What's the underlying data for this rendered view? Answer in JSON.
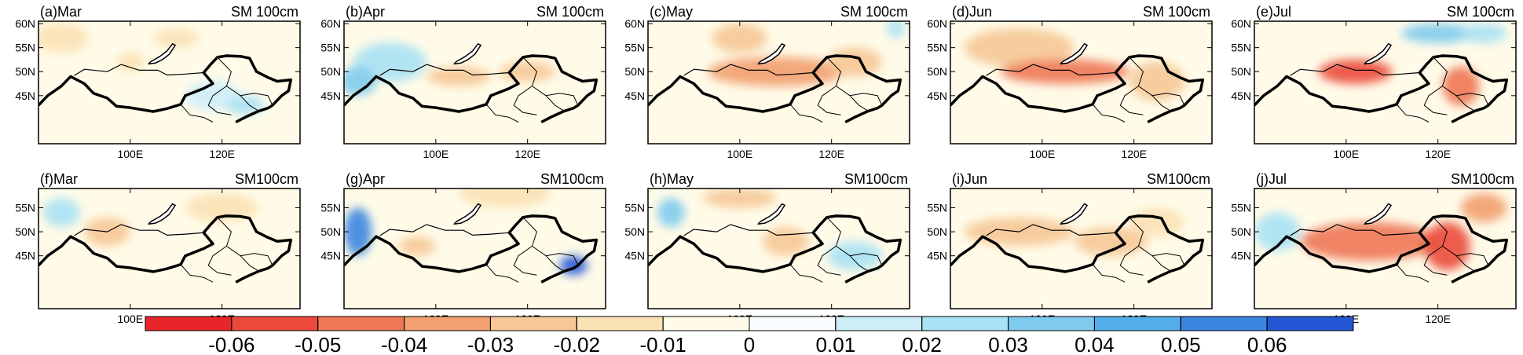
{
  "panels": [
    {
      "label": "(a)Mar",
      "variable": "SM 100cm",
      "xlim": [
        80,
        137
      ],
      "ylim": [
        35,
        60.5
      ],
      "yticks": [
        {
          "value": 60,
          "label": "60N"
        },
        {
          "value": 55,
          "label": "55N"
        },
        {
          "value": 50,
          "label": "50N"
        },
        {
          "value": 45,
          "label": "45N"
        }
      ],
      "xticks": [
        {
          "value": 100,
          "label": "100E"
        },
        {
          "value": 120,
          "label": "120E"
        }
      ]
    },
    {
      "label": "(b)Apr",
      "variable": "SM 100cm",
      "xlim": [
        80,
        137
      ],
      "ylim": [
        35,
        60.5
      ],
      "yticks": [
        {
          "value": 60,
          "label": "60N"
        },
        {
          "value": 55,
          "label": "55N"
        },
        {
          "value": 50,
          "label": "50N"
        },
        {
          "value": 45,
          "label": "45N"
        }
      ],
      "xticks": [
        {
          "value": 100,
          "label": "100E"
        },
        {
          "value": 120,
          "label": "120E"
        }
      ]
    },
    {
      "label": "(c)May",
      "variable": "SM 100cm",
      "xlim": [
        80,
        137
      ],
      "ylim": [
        35,
        60.5
      ],
      "yticks": [
        {
          "value": 60,
          "label": "60N"
        },
        {
          "value": 55,
          "label": "55N"
        },
        {
          "value": 50,
          "label": "50N"
        },
        {
          "value": 45,
          "label": "45N"
        }
      ],
      "xticks": [
        {
          "value": 100,
          "label": "100E"
        },
        {
          "value": 120,
          "label": "120E"
        }
      ]
    },
    {
      "label": "(d)Jun",
      "variable": "SM 100cm",
      "xlim": [
        80,
        137
      ],
      "ylim": [
        35,
        60.5
      ],
      "yticks": [
        {
          "value": 60,
          "label": "60N"
        },
        {
          "value": 55,
          "label": "55N"
        },
        {
          "value": 50,
          "label": "50N"
        },
        {
          "value": 45,
          "label": "45N"
        }
      ],
      "xticks": [
        {
          "value": 100,
          "label": "100E"
        },
        {
          "value": 120,
          "label": "120E"
        }
      ]
    },
    {
      "label": "(e)Jul",
      "variable": "SM 100cm",
      "xlim": [
        80,
        137
      ],
      "ylim": [
        35,
        60.5
      ],
      "yticks": [
        {
          "value": 60,
          "label": "60N"
        },
        {
          "value": 55,
          "label": "55N"
        },
        {
          "value": 50,
          "label": "50N"
        },
        {
          "value": 45,
          "label": "45N"
        }
      ],
      "xticks": [
        {
          "value": 100,
          "label": "100E"
        },
        {
          "value": 120,
          "label": "120E"
        }
      ]
    },
    {
      "label": "(f)Mar",
      "variable": "SM100cm",
      "xlim": [
        80,
        137
      ],
      "ylim": [
        34,
        59
      ],
      "yticks": [
        {
          "value": 55,
          "label": "55N"
        },
        {
          "value": 50,
          "label": "50N"
        },
        {
          "value": 45,
          "label": "45N"
        }
      ],
      "xticks": [
        {
          "value": 100,
          "label": "100E"
        },
        {
          "value": 120,
          "label": "120E"
        }
      ]
    },
    {
      "label": "(g)Apr",
      "variable": "SM100cm",
      "xlim": [
        80,
        137
      ],
      "ylim": [
        34,
        59
      ],
      "yticks": [
        {
          "value": 55,
          "label": "55N"
        },
        {
          "value": 50,
          "label": "50N"
        },
        {
          "value": 45,
          "label": "45N"
        }
      ],
      "xticks": [
        {
          "value": 100,
          "label": "100E"
        },
        {
          "value": 120,
          "label": "120E"
        }
      ]
    },
    {
      "label": "(h)May",
      "variable": "SM100cm",
      "xlim": [
        80,
        137
      ],
      "ylim": [
        34,
        59
      ],
      "yticks": [
        {
          "value": 55,
          "label": "55N"
        },
        {
          "value": 50,
          "label": "50N"
        },
        {
          "value": 45,
          "label": "45N"
        }
      ],
      "xticks": [
        {
          "value": 100,
          "label": "100E"
        },
        {
          "value": 120,
          "label": "120E"
        }
      ]
    },
    {
      "label": "(i)Jun",
      "variable": "SM100cm",
      "xlim": [
        80,
        137
      ],
      "ylim": [
        34,
        59
      ],
      "yticks": [
        {
          "value": 55,
          "label": "55N"
        },
        {
          "value": 50,
          "label": "50N"
        },
        {
          "value": 45,
          "label": "45N"
        }
      ],
      "xticks": [
        {
          "value": 100,
          "label": "100E"
        },
        {
          "value": 120,
          "label": "120E"
        }
      ]
    },
    {
      "label": "(j)Jul",
      "variable": "SM100cm",
      "xlim": [
        80,
        137
      ],
      "ylim": [
        34,
        59
      ],
      "yticks": [
        {
          "value": 55,
          "label": "55N"
        },
        {
          "value": 50,
          "label": "50N"
        },
        {
          "value": 45,
          "label": "45N"
        }
      ],
      "xticks": [
        {
          "value": 100,
          "label": "100E"
        },
        {
          "value": 120,
          "label": "120E"
        }
      ]
    }
  ],
  "colorbar": {
    "labels": [
      -0.06,
      -0.05,
      -0.04,
      -0.03,
      -0.02,
      -0.01,
      0,
      0.01,
      0.02,
      0.03,
      0.04,
      0.05,
      0.06
    ],
    "colors": [
      "#e8262a",
      "#eb4a3a",
      "#ee7755",
      "#f2a070",
      "#f6c896",
      "#fbe2b5",
      "#fffbe8",
      "#f8fdff",
      "#cdeef9",
      "#a8e2f4",
      "#7fcbee",
      "#55aeea",
      "#3b86e0",
      "#2457d6"
    ]
  }
}
